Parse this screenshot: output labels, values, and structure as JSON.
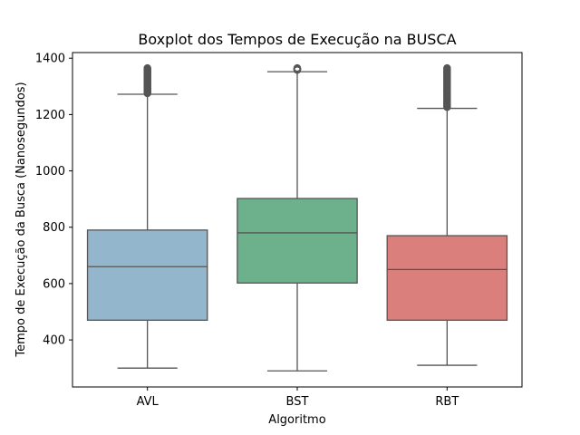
{
  "chart_data": {
    "type": "boxplot",
    "title": "Boxplot dos Tempos de Execução na BUSCA",
    "xlabel": "Algoritmo",
    "ylabel": "Tempo de Execução da Busca (Nanosegundos)",
    "categories": [
      "AVL",
      "BST",
      "RBT"
    ],
    "ylim": [
      233,
      1420
    ],
    "yticks": [
      400,
      600,
      800,
      1000,
      1200,
      1400
    ],
    "grid": false,
    "boxes": [
      {
        "category": "AVL",
        "color": "#93b6cd",
        "whisker_low": 300,
        "q1": 470,
        "median": 660,
        "q3": 790,
        "whisker_high": 1272,
        "outliers_range": [
          1275,
          1365
        ]
      },
      {
        "category": "BST",
        "color": "#6db18c",
        "whisker_low": 290,
        "q1": 602,
        "median": 780,
        "q3": 902,
        "whisker_high": 1352,
        "outliers_range": [
          1358,
          1365
        ]
      },
      {
        "category": "RBT",
        "color": "#da7f7c",
        "whisker_low": 310,
        "q1": 470,
        "median": 650,
        "q3": 770,
        "whisker_high": 1222,
        "outliers_range": [
          1226,
          1365
        ]
      }
    ]
  }
}
